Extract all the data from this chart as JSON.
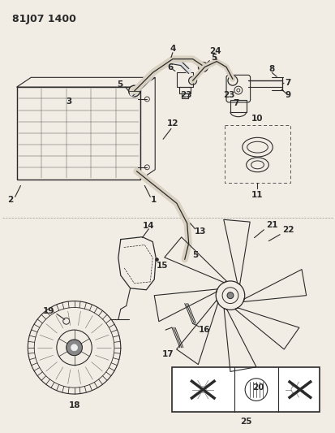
{
  "title": "81J07 1400",
  "bg_color": "#f2ede4",
  "line_color": "#2a2a2a",
  "label_color": "#1a1a1a",
  "figsize": [
    4.14,
    5.33
  ],
  "dpi": 100
}
